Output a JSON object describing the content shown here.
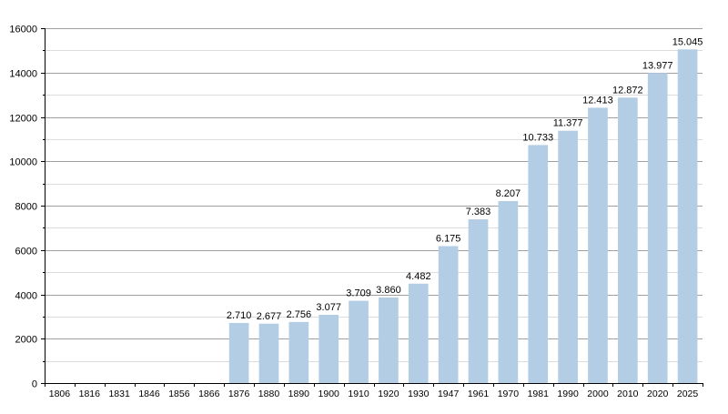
{
  "chart_data": {
    "type": "bar",
    "title": "",
    "xlabel": "",
    "ylabel": "",
    "categories": [
      "1806",
      "1816",
      "1831",
      "1846",
      "1856",
      "1866",
      "1876",
      "1880",
      "1890",
      "1900",
      "1910",
      "1920",
      "1930",
      "1947",
      "1961",
      "1970",
      "1981",
      "1990",
      "2000",
      "2010",
      "2020",
      "2025"
    ],
    "values": [
      null,
      null,
      null,
      null,
      null,
      null,
      2710,
      2677,
      2756,
      3077,
      3709,
      3860,
      4482,
      6175,
      7383,
      8207,
      10733,
      11377,
      12413,
      12872,
      13977,
      15045
    ],
    "data_labels": [
      "",
      "",
      "",
      "",
      "",
      "",
      "2.710",
      "2.677",
      "2.756",
      "3.077",
      "3.709",
      "3.860",
      "4.482",
      "6.175",
      "7.383",
      "8.207",
      "10.733",
      "11.377",
      "12.413",
      "12.872",
      "13.977",
      "15.045"
    ],
    "ylim": [
      0,
      16000
    ],
    "y_ticks": [
      "0",
      "2000",
      "4000",
      "6000",
      "8000",
      "10000",
      "12000",
      "14000",
      "16000"
    ],
    "grid": true,
    "bar_color": "#b3cde5",
    "legend": "none"
  }
}
